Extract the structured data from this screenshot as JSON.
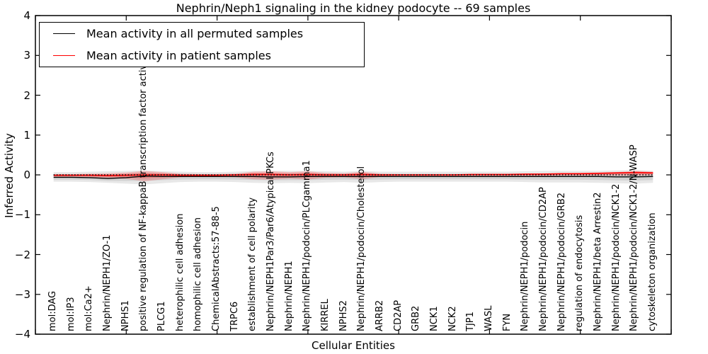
{
  "title": "Nephrin/Neph1 signaling in the kidney podocyte -- 69 samples",
  "axes": {
    "xlabel": "Cellular Entities",
    "ylabel": "Inferred Activity",
    "ytick_labels": [
      "4",
      "3",
      "2",
      "1",
      "0",
      "−1",
      "−2",
      "−3",
      "−4"
    ],
    "ylim": [
      -4,
      4
    ],
    "x_major_tick_step": 5
  },
  "legend": {
    "items": [
      {
        "label": "Mean activity in all permuted samples",
        "color": "#000000"
      },
      {
        "label": "Mean activity in patient samples",
        "color": "#ff0000"
      }
    ]
  },
  "colors": {
    "permuted_line": "#000000",
    "patient_line": "#ff0000",
    "permuted_band": "rgba(0,0,0,0.09)",
    "patient_band": "rgba(255,0,0,0.20)",
    "baseline_dotted": "#000000",
    "frame": "#000000"
  },
  "chart_data": {
    "type": "area",
    "title": "Nephrin/Neph1 signaling in the kidney podocyte -- 69 samples",
    "xlabel": "Cellular Entities",
    "ylabel": "Inferred Activity",
    "ylim": [
      -4,
      4
    ],
    "grid": false,
    "legend_position": "upper left",
    "categories": [
      "mol:DAG",
      "mol:IP3",
      "mol:Ca2+",
      "Nephrin/NEPH1/ZO-1",
      "NPHS1",
      "positive regulation of NF-kappaB transcription factor activity",
      "PLCG1",
      "heterophilic cell adhesion",
      "homophilic cell adhesion",
      "ChemicalAbstracts:57-88-5",
      "TRPC6",
      "establishment of cell polarity",
      "Nephrin/NEPH1Par3/Par6/Atypical PKCs",
      "Nephrin/NEPH1",
      "Nephrin/NEPH1/podocin/PLCgamma1",
      "KIRREL",
      "NPHS2",
      "Nephrin/NEPH1/podocin/Cholesterol",
      "ARRB2",
      "CD2AP",
      "GRB2",
      "NCK1",
      "NCK2",
      "TJP1",
      "WASL",
      "FYN",
      "Nephrin/NEPH1/podocin",
      "Nephrin/NEPH1/podocin/CD2AP",
      "Nephrin/NEPH1/podocin/GRB2",
      "regulation of endocytosis",
      "Nephrin/NEPH1/beta Arrestin2",
      "Nephrin/NEPH1/podocin/NCK1-2",
      "Nephrin/NEPH1/podocin/NCK1-2/N-WASP",
      "cytoskeleton organization"
    ],
    "series": [
      {
        "name": "Mean activity in all permuted samples",
        "kind": "line",
        "color": "#000000",
        "values": [
          -0.06,
          -0.06,
          -0.07,
          -0.09,
          -0.07,
          -0.03,
          -0.04,
          -0.04,
          -0.04,
          -0.04,
          -0.04,
          -0.04,
          -0.05,
          -0.05,
          -0.04,
          -0.04,
          -0.04,
          -0.04,
          -0.04,
          -0.04,
          -0.04,
          -0.04,
          -0.04,
          -0.04,
          -0.04,
          -0.04,
          -0.04,
          -0.04,
          -0.04,
          -0.04,
          -0.04,
          -0.05,
          -0.05,
          -0.04
        ]
      },
      {
        "name": "Mean activity in patient samples",
        "kind": "line",
        "color": "#ff0000",
        "values": [
          -0.01,
          -0.01,
          -0.01,
          -0.02,
          -0.01,
          0,
          0,
          -0.01,
          -0.01,
          -0.01,
          0,
          0.01,
          0.01,
          0,
          0.01,
          0,
          0,
          0.01,
          0,
          0,
          0,
          0,
          0,
          0.01,
          0.01,
          0.01,
          0.02,
          0.02,
          0.03,
          0.03,
          0.04,
          0.05,
          0.06,
          0.05
        ]
      },
      {
        "name": "Permuted activity spread",
        "kind": "band",
        "mean_ref": 0,
        "upper": [
          0.07,
          0.07,
          0.08,
          0.09,
          0.1,
          0.11,
          0.09,
          0.08,
          0.07,
          0.07,
          0.08,
          0.1,
          0.1,
          0.1,
          0.1,
          0.09,
          0.08,
          0.1,
          0.08,
          0.08,
          0.08,
          0.08,
          0.08,
          0.08,
          0.08,
          0.08,
          0.09,
          0.1,
          0.1,
          0.1,
          0.1,
          0.11,
          0.12,
          0.1
        ],
        "lower": [
          -0.17,
          -0.17,
          -0.18,
          -0.2,
          -0.22,
          -0.24,
          -0.21,
          -0.18,
          -0.17,
          -0.17,
          -0.18,
          -0.2,
          -0.21,
          -0.2,
          -0.21,
          -0.19,
          -0.18,
          -0.2,
          -0.18,
          -0.17,
          -0.17,
          -0.17,
          -0.17,
          -0.17,
          -0.17,
          -0.17,
          -0.18,
          -0.19,
          -0.19,
          -0.19,
          -0.2,
          -0.21,
          -0.22,
          -0.2
        ]
      },
      {
        "name": "Patient activity spread",
        "kind": "band",
        "mean_ref": 1,
        "upper": [
          0.02,
          0.02,
          0.03,
          0.04,
          0.06,
          0.1,
          0.07,
          0.03,
          0.02,
          0.02,
          0.03,
          0.08,
          0.09,
          0.07,
          0.09,
          0.05,
          0.04,
          0.08,
          0.03,
          0.02,
          0.02,
          0.02,
          0.02,
          0.02,
          0.02,
          0.02,
          0.03,
          0.04,
          0.04,
          0.05,
          0.06,
          0.07,
          0.1,
          0.08
        ],
        "lower": [
          -0.05,
          -0.05,
          -0.06,
          -0.08,
          -0.1,
          -0.16,
          -0.11,
          -0.06,
          -0.05,
          -0.05,
          -0.06,
          -0.11,
          -0.12,
          -0.09,
          -0.12,
          -0.07,
          -0.06,
          -0.11,
          -0.05,
          -0.03,
          -0.03,
          -0.03,
          -0.03,
          -0.03,
          -0.03,
          -0.03,
          -0.03,
          -0.03,
          -0.02,
          -0.02,
          -0.02,
          -0.02,
          -0.02,
          -0.01
        ]
      },
      {
        "name": "Zero baseline",
        "kind": "hline",
        "style": "dotted",
        "color": "#000000",
        "value": 0
      }
    ]
  }
}
